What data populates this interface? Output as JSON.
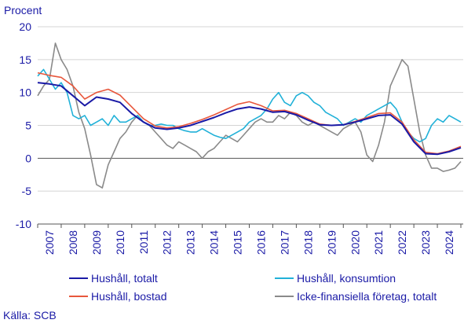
{
  "chart_data": {
    "type": "line",
    "ylabel": "Procent",
    "ylim": [
      -10,
      20
    ],
    "yticks": [
      -10,
      -5,
      0,
      5,
      10,
      15,
      20
    ],
    "xlim": [
      2007.0,
      2025.1
    ],
    "x_tick_labels": [
      "2007",
      "2008",
      "2009",
      "2010",
      "2011",
      "2012",
      "2013",
      "2014",
      "2015",
      "2016",
      "2017",
      "2018",
      "2019",
      "2020",
      "2021",
      "2022",
      "2023",
      "2024"
    ],
    "grid": "horizontal",
    "legend_position": "bottom",
    "source": "Källa: SCB",
    "series": [
      {
        "name": "Hushåll, totalt",
        "color": "#1a1aa6",
        "x": [
          2007.0,
          2007.5,
          2008.0,
          2008.5,
          2009.0,
          2009.5,
          2010.0,
          2010.5,
          2011.0,
          2011.5,
          2012.0,
          2012.5,
          2013.0,
          2013.5,
          2014.0,
          2014.5,
          2015.0,
          2015.5,
          2016.0,
          2016.5,
          2017.0,
          2017.5,
          2018.0,
          2018.5,
          2019.0,
          2019.5,
          2020.0,
          2020.5,
          2021.0,
          2021.5,
          2022.0,
          2022.5,
          2023.0,
          2023.5,
          2024.0,
          2024.5,
          2025.0
        ],
        "values": [
          11.5,
          11.3,
          11.0,
          9.5,
          8.0,
          9.3,
          9.0,
          8.5,
          6.8,
          5.5,
          4.6,
          4.4,
          4.6,
          5.0,
          5.6,
          6.2,
          6.9,
          7.5,
          7.8,
          7.5,
          7.0,
          7.1,
          6.6,
          5.8,
          5.1,
          5.0,
          5.1,
          5.5,
          6.0,
          6.5,
          6.6,
          5.2,
          2.5,
          0.7,
          0.6,
          1.0,
          1.6
        ]
      },
      {
        "name": "Hushåll, bostad",
        "color": "#e8573c",
        "x": [
          2007.0,
          2007.5,
          2008.0,
          2008.5,
          2009.0,
          2009.5,
          2010.0,
          2010.5,
          2011.0,
          2011.5,
          2012.0,
          2012.5,
          2013.0,
          2013.5,
          2014.0,
          2014.5,
          2015.0,
          2015.5,
          2016.0,
          2016.5,
          2017.0,
          2017.5,
          2018.0,
          2018.5,
          2019.0,
          2019.5,
          2020.0,
          2020.5,
          2021.0,
          2021.5,
          2022.0,
          2022.5,
          2023.0,
          2023.5,
          2024.0,
          2024.5,
          2025.0
        ],
        "values": [
          13.0,
          12.6,
          12.3,
          11.0,
          9.0,
          10.0,
          10.5,
          9.6,
          7.8,
          6.0,
          4.9,
          4.6,
          4.8,
          5.3,
          5.9,
          6.6,
          7.4,
          8.2,
          8.6,
          8.0,
          7.2,
          7.3,
          6.8,
          6.0,
          5.2,
          5.0,
          5.1,
          5.6,
          6.2,
          6.8,
          6.9,
          5.5,
          2.8,
          0.9,
          0.7,
          1.1,
          1.8
        ]
      },
      {
        "name": "Hushåll, konsumtion",
        "color": "#21b1d8",
        "x": [
          2007.0,
          2007.25,
          2007.5,
          2007.75,
          2008.0,
          2008.25,
          2008.5,
          2008.75,
          2009.0,
          2009.25,
          2009.5,
          2009.75,
          2010.0,
          2010.25,
          2010.5,
          2010.75,
          2011.0,
          2011.25,
          2011.5,
          2011.75,
          2012.0,
          2012.25,
          2012.5,
          2012.75,
          2013.0,
          2013.25,
          2013.5,
          2013.75,
          2014.0,
          2014.25,
          2014.5,
          2014.75,
          2015.0,
          2015.25,
          2015.5,
          2015.75,
          2016.0,
          2016.25,
          2016.5,
          2016.75,
          2017.0,
          2017.25,
          2017.5,
          2017.75,
          2018.0,
          2018.25,
          2018.5,
          2018.75,
          2019.0,
          2019.25,
          2019.5,
          2019.75,
          2020.0,
          2020.25,
          2020.5,
          2020.75,
          2021.0,
          2021.25,
          2021.5,
          2021.75,
          2022.0,
          2022.25,
          2022.5,
          2022.75,
          2023.0,
          2023.25,
          2023.5,
          2023.75,
          2024.0,
          2024.25,
          2024.5,
          2024.75,
          2025.0
        ],
        "values": [
          12.5,
          13.5,
          12.0,
          10.5,
          11.5,
          10.0,
          6.5,
          6.0,
          6.5,
          5.0,
          5.5,
          6.0,
          5.0,
          6.5,
          5.5,
          5.5,
          6.0,
          6.5,
          5.5,
          5.0,
          5.0,
          5.2,
          5.0,
          5.0,
          4.5,
          4.2,
          4.0,
          4.0,
          4.5,
          4.0,
          3.5,
          3.2,
          3.0,
          3.5,
          4.0,
          4.5,
          5.5,
          6.0,
          6.5,
          7.5,
          9.0,
          10.0,
          8.5,
          8.0,
          9.5,
          10.0,
          9.5,
          8.5,
          8.0,
          7.0,
          6.5,
          6.0,
          5.0,
          5.5,
          6.0,
          5.5,
          6.5,
          7.0,
          7.5,
          8.0,
          8.5,
          7.5,
          5.5,
          4.0,
          3.0,
          2.5,
          3.0,
          5.0,
          6.0,
          5.5,
          6.5,
          6.0,
          5.5
        ]
      },
      {
        "name": "Icke-finansiella företag, totalt",
        "color": "#8a8a8a",
        "x": [
          2007.0,
          2007.25,
          2007.5,
          2007.75,
          2008.0,
          2008.25,
          2008.5,
          2008.75,
          2009.0,
          2009.25,
          2009.5,
          2009.75,
          2010.0,
          2010.25,
          2010.5,
          2010.75,
          2011.0,
          2011.25,
          2011.5,
          2011.75,
          2012.0,
          2012.25,
          2012.5,
          2012.75,
          2013.0,
          2013.25,
          2013.5,
          2013.75,
          2014.0,
          2014.25,
          2014.5,
          2014.75,
          2015.0,
          2015.25,
          2015.5,
          2015.75,
          2016.0,
          2016.25,
          2016.5,
          2016.75,
          2017.0,
          2017.25,
          2017.5,
          2017.75,
          2018.0,
          2018.25,
          2018.5,
          2018.75,
          2019.0,
          2019.25,
          2019.5,
          2019.75,
          2020.0,
          2020.25,
          2020.5,
          2020.75,
          2021.0,
          2021.25,
          2021.5,
          2021.75,
          2022.0,
          2022.25,
          2022.5,
          2022.75,
          2023.0,
          2023.25,
          2023.5,
          2023.75,
          2024.0,
          2024.25,
          2024.5,
          2024.75,
          2025.0
        ],
        "values": [
          9.5,
          11.0,
          12.0,
          17.5,
          15.0,
          13.5,
          11.0,
          7.0,
          4.5,
          0.5,
          -4.0,
          -4.5,
          -1.0,
          1.0,
          3.0,
          4.0,
          5.5,
          6.5,
          5.5,
          5.0,
          4.0,
          3.0,
          2.0,
          1.5,
          2.5,
          2.0,
          1.5,
          1.0,
          0.0,
          1.0,
          1.5,
          2.5,
          3.5,
          3.0,
          2.5,
          3.5,
          4.5,
          5.5,
          6.0,
          5.5,
          5.5,
          6.5,
          6.0,
          7.0,
          6.5,
          5.5,
          5.0,
          5.5,
          5.0,
          4.5,
          4.0,
          3.5,
          4.5,
          5.0,
          5.5,
          4.0,
          0.5,
          -0.5,
          2.0,
          5.5,
          11.0,
          13.0,
          15.0,
          14.0,
          9.0,
          4.0,
          0.5,
          -1.5,
          -1.5,
          -2.0,
          -1.8,
          -1.5,
          -0.5
        ]
      }
    ]
  }
}
